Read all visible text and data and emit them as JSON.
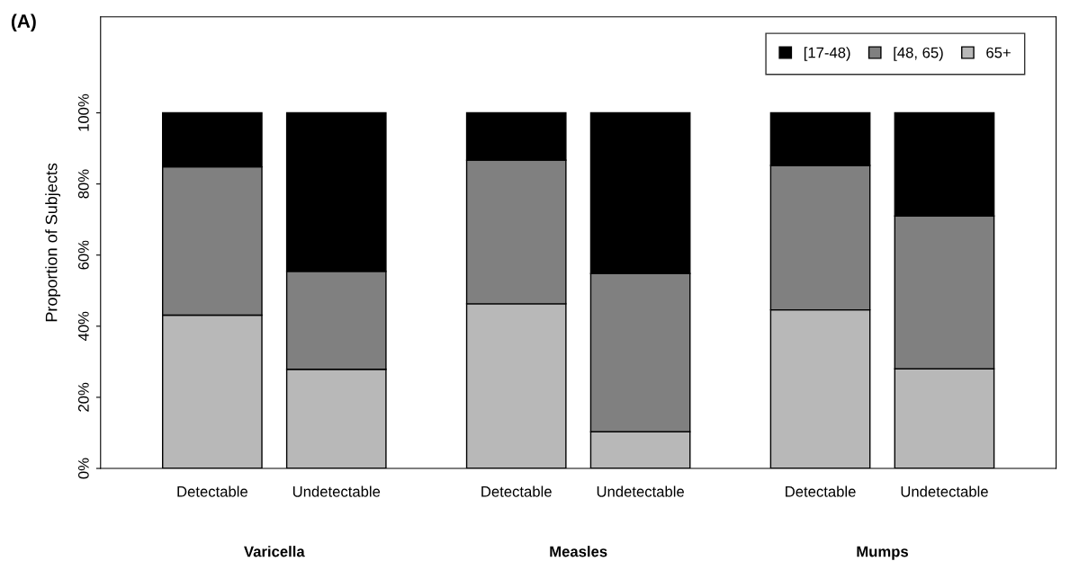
{
  "chart_data": {
    "type": "bar",
    "title": "(A)",
    "ylabel": "Proportion of Subjects",
    "stacked": true,
    "categories": [
      "Detectable",
      "Undetectable",
      "Detectable",
      "Undetectable",
      "Detectable",
      "Undetectable"
    ],
    "series": [
      {
        "name": "65+",
        "color": "#b8b8b8",
        "values": [
          43.1,
          27.9,
          46.3,
          10.3,
          44.6,
          28.0
        ]
      },
      {
        "name": "[48, 65)",
        "color": "#808080",
        "values": [
          41.7,
          27.5,
          40.4,
          44.5,
          40.6,
          43.0
        ]
      },
      {
        "name": "[17-48)",
        "color": "#000000",
        "values": [
          15.2,
          44.6,
          13.3,
          45.2,
          14.8,
          29.0
        ]
      }
    ],
    "annotations": [
      "Varicella",
      "Measles",
      "Mumps"
    ],
    "ylim": [
      0,
      127
    ],
    "yticks": [
      {
        "value": 0,
        "label": "0%"
      },
      {
        "value": 20,
        "label": "20%"
      },
      {
        "value": 40,
        "label": "40%"
      },
      {
        "value": 60,
        "label": "60%"
      },
      {
        "value": 80,
        "label": "80%"
      },
      {
        "value": 100,
        "label": "100%"
      }
    ],
    "legend": "top right",
    "grid": false
  }
}
